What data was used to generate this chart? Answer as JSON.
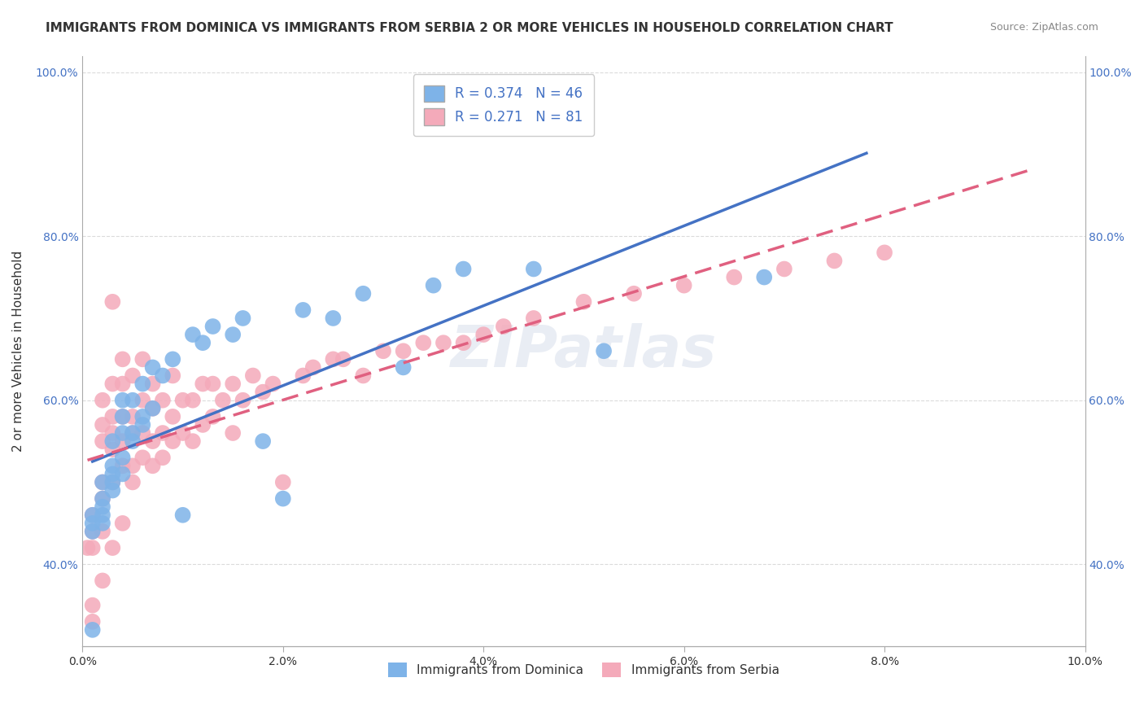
{
  "title": "IMMIGRANTS FROM DOMINICA VS IMMIGRANTS FROM SERBIA 2 OR MORE VEHICLES IN HOUSEHOLD CORRELATION CHART",
  "source": "Source: ZipAtlas.com",
  "xlabel": "",
  "ylabel": "2 or more Vehicles in Household",
  "xlim": [
    0.0,
    0.1
  ],
  "ylim": [
    0.3,
    1.02
  ],
  "xticks": [
    0.0,
    0.02,
    0.04,
    0.06,
    0.08,
    0.1
  ],
  "xticklabels": [
    "0.0%",
    "2.0%",
    "4.0%",
    "6.0%",
    "8.0%",
    "10.0%"
  ],
  "yticks": [
    0.4,
    0.6,
    0.8,
    1.0
  ],
  "yticklabels": [
    "40.0%",
    "60.0%",
    "80.0%",
    "100.0%"
  ],
  "right_yticks": [
    0.4,
    0.6,
    0.8,
    1.0
  ],
  "right_yticklabels": [
    "40.0%",
    "60.0%",
    "80.0%",
    "100.0%"
  ],
  "series_dominica": {
    "label": "Immigrants from Dominica",
    "color": "#7EB3E8",
    "R": 0.374,
    "N": 46,
    "line_color": "#4472C4",
    "x": [
      0.001,
      0.001,
      0.001,
      0.001,
      0.002,
      0.002,
      0.002,
      0.002,
      0.002,
      0.003,
      0.003,
      0.003,
      0.003,
      0.003,
      0.004,
      0.004,
      0.004,
      0.004,
      0.004,
      0.005,
      0.005,
      0.005,
      0.006,
      0.006,
      0.006,
      0.007,
      0.007,
      0.008,
      0.009,
      0.01,
      0.011,
      0.012,
      0.013,
      0.015,
      0.016,
      0.018,
      0.02,
      0.022,
      0.025,
      0.028,
      0.032,
      0.035,
      0.038,
      0.045,
      0.052,
      0.068
    ],
    "y": [
      0.32,
      0.44,
      0.45,
      0.46,
      0.45,
      0.46,
      0.47,
      0.48,
      0.5,
      0.49,
      0.5,
      0.51,
      0.52,
      0.55,
      0.51,
      0.53,
      0.56,
      0.58,
      0.6,
      0.55,
      0.56,
      0.6,
      0.57,
      0.58,
      0.62,
      0.59,
      0.64,
      0.63,
      0.65,
      0.46,
      0.68,
      0.67,
      0.69,
      0.68,
      0.7,
      0.55,
      0.48,
      0.71,
      0.7,
      0.73,
      0.64,
      0.74,
      0.76,
      0.76,
      0.66,
      0.75
    ]
  },
  "series_serbia": {
    "label": "Immigrants from Serbia",
    "color": "#F4AABA",
    "R": 0.271,
    "N": 81,
    "line_color": "#E06080",
    "x": [
      0.0005,
      0.001,
      0.001,
      0.001,
      0.001,
      0.001,
      0.002,
      0.002,
      0.002,
      0.002,
      0.002,
      0.002,
      0.002,
      0.003,
      0.003,
      0.003,
      0.003,
      0.003,
      0.003,
      0.003,
      0.004,
      0.004,
      0.004,
      0.004,
      0.004,
      0.004,
      0.005,
      0.005,
      0.005,
      0.005,
      0.005,
      0.006,
      0.006,
      0.006,
      0.006,
      0.007,
      0.007,
      0.007,
      0.007,
      0.008,
      0.008,
      0.008,
      0.009,
      0.009,
      0.009,
      0.01,
      0.01,
      0.011,
      0.011,
      0.012,
      0.012,
      0.013,
      0.013,
      0.014,
      0.015,
      0.015,
      0.016,
      0.017,
      0.018,
      0.019,
      0.02,
      0.022,
      0.023,
      0.025,
      0.026,
      0.028,
      0.03,
      0.032,
      0.034,
      0.036,
      0.038,
      0.04,
      0.042,
      0.045,
      0.05,
      0.055,
      0.06,
      0.065,
      0.07,
      0.075,
      0.08
    ],
    "y": [
      0.42,
      0.33,
      0.35,
      0.42,
      0.44,
      0.46,
      0.38,
      0.44,
      0.48,
      0.5,
      0.55,
      0.57,
      0.6,
      0.42,
      0.5,
      0.54,
      0.56,
      0.58,
      0.62,
      0.72,
      0.45,
      0.52,
      0.55,
      0.58,
      0.62,
      0.65,
      0.5,
      0.52,
      0.56,
      0.58,
      0.63,
      0.53,
      0.56,
      0.6,
      0.65,
      0.52,
      0.55,
      0.59,
      0.62,
      0.53,
      0.56,
      0.6,
      0.55,
      0.58,
      0.63,
      0.56,
      0.6,
      0.55,
      0.6,
      0.57,
      0.62,
      0.58,
      0.62,
      0.6,
      0.56,
      0.62,
      0.6,
      0.63,
      0.61,
      0.62,
      0.5,
      0.63,
      0.64,
      0.65,
      0.65,
      0.63,
      0.66,
      0.66,
      0.67,
      0.67,
      0.67,
      0.68,
      0.69,
      0.7,
      0.72,
      0.73,
      0.74,
      0.75,
      0.76,
      0.77,
      0.78
    ]
  },
  "legend_color": "#4472C4",
  "grid_color": "#CCCCCC",
  "watermark": "ZIPatlas",
  "background_color": "#FFFFFF",
  "title_fontsize": 11,
  "axis_label_fontsize": 11,
  "tick_fontsize": 10,
  "legend_fontsize": 12
}
